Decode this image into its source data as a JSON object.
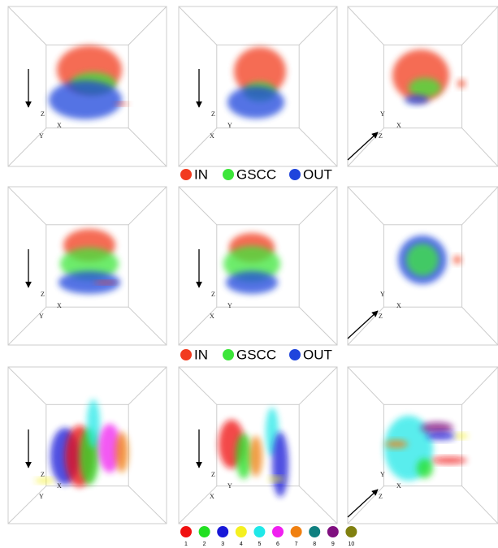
{
  "legends": [
    {
      "items": [
        {
          "label": "IN",
          "color": "#f23b1f"
        },
        {
          "label": "GSCC",
          "color": "#3de63a"
        },
        {
          "label": "OUT",
          "color": "#1f44dc"
        }
      ]
    },
    {
      "items": [
        {
          "label": "IN",
          "color": "#f23b1f"
        },
        {
          "label": "GSCC",
          "color": "#3de63a"
        },
        {
          "label": "OUT",
          "color": "#1f44dc"
        }
      ]
    }
  ],
  "cluster_legend": {
    "items": [
      {
        "label": "1",
        "color": "#f01010"
      },
      {
        "label": "2",
        "color": "#22e022"
      },
      {
        "label": "3",
        "color": "#1818d8"
      },
      {
        "label": "4",
        "color": "#f5f020"
      },
      {
        "label": "5",
        "color": "#20e8e8"
      },
      {
        "label": "6",
        "color": "#f020f0"
      },
      {
        "label": "7",
        "color": "#f08010"
      },
      {
        "label": "8",
        "color": "#108080"
      },
      {
        "label": "9",
        "color": "#801080"
      },
      {
        "label": "10",
        "color": "#808010"
      }
    ]
  },
  "panels": [
    {
      "axes": [
        "Z",
        "X",
        "Y"
      ]
    },
    {
      "axes": [
        "Z",
        "Y",
        "X"
      ]
    },
    {
      "axes": [
        "Y",
        "X",
        "Z"
      ]
    },
    {
      "axes": [
        "Z",
        "X",
        "Y"
      ]
    },
    {
      "axes": [
        "Z",
        "Y",
        "X"
      ]
    },
    {
      "axes": [
        "Y",
        "X",
        "Z"
      ]
    },
    {
      "axes": [
        "Z",
        "X",
        "Y"
      ]
    },
    {
      "axes": [
        "Z",
        "Y",
        "X"
      ]
    },
    {
      "axes": [
        "Y",
        "X",
        "Z"
      ]
    }
  ]
}
